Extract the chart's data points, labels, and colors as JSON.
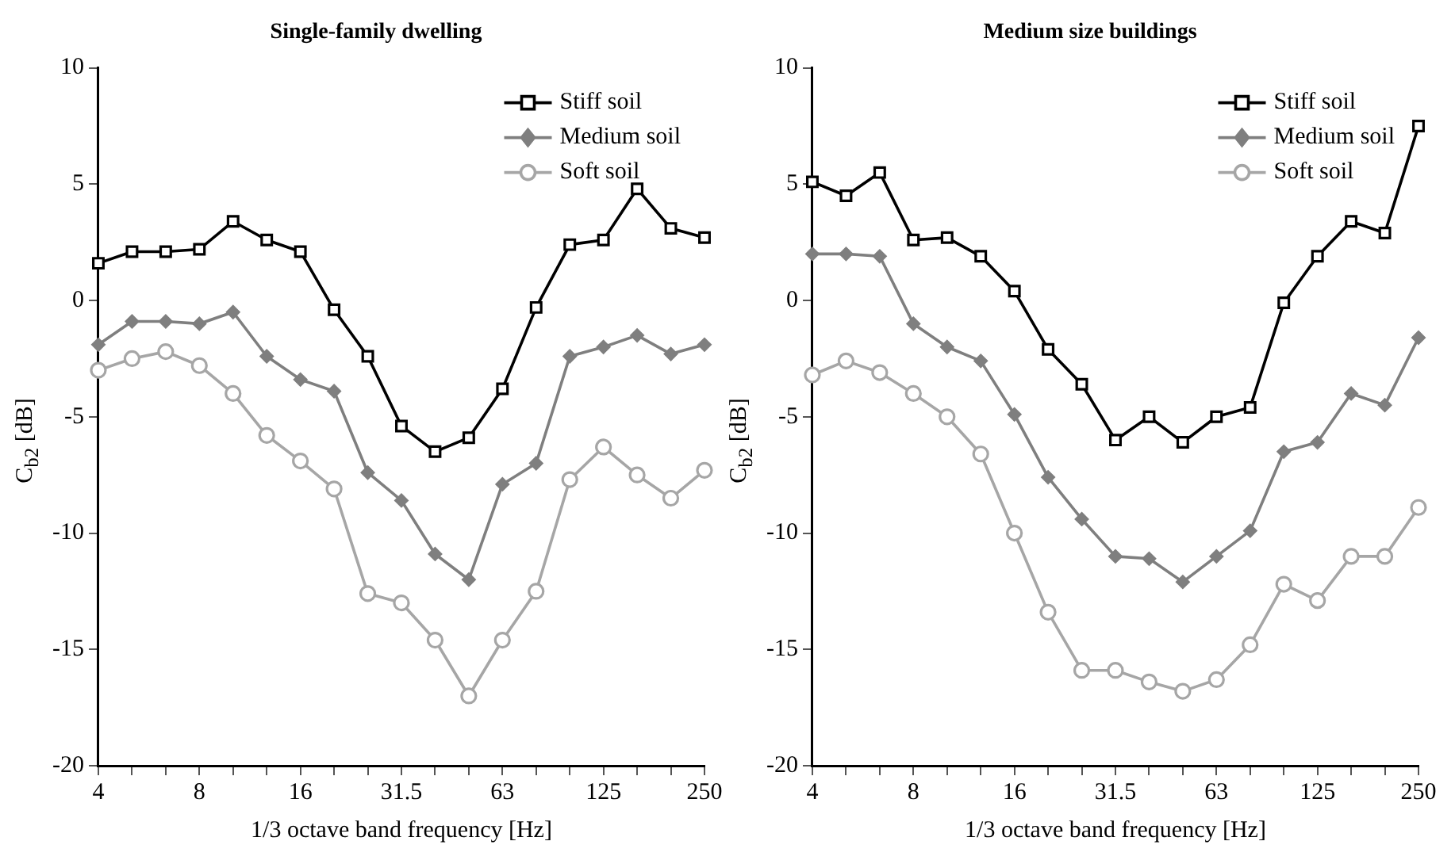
{
  "chart_data": [
    {
      "type": "line",
      "title": "Single-family dwelling",
      "xlabel": "1/3 octave band frequency [Hz]",
      "ylabel": "C$_{b2}$ [dB]",
      "categories": [
        "4",
        null,
        null,
        "8",
        null,
        null,
        "16",
        null,
        null,
        "31.5",
        null,
        null,
        "63",
        null,
        null,
        "125",
        null,
        null,
        "250"
      ],
      "ylim": [
        -20,
        10
      ],
      "yticks": [
        -20,
        -15,
        -10,
        -5,
        0,
        5,
        10
      ],
      "grid": false,
      "legend": "top right",
      "line_style": "solid",
      "series": [
        {
          "name": "Stiff soil",
          "color": "#000000",
          "marker": "square",
          "values": [
            1.6,
            2.1,
            2.1,
            2.2,
            3.4,
            2.6,
            2.1,
            -0.4,
            -2.4,
            -5.4,
            -6.5,
            -5.9,
            -3.8,
            -0.3,
            2.4,
            2.6,
            4.8,
            3.1,
            2.7
          ]
        },
        {
          "name": "Medium soil",
          "color": "#7f7f7f",
          "marker": "diamond",
          "values": [
            -1.9,
            -0.9,
            -0.9,
            -1.0,
            -0.5,
            -2.4,
            -3.4,
            -3.9,
            -7.4,
            -8.6,
            -10.9,
            -12.0,
            -7.9,
            -7.0,
            -2.4,
            -2.0,
            -1.5,
            -2.3,
            -1.9
          ]
        },
        {
          "name": "Soft soil",
          "color": "#a6a6a6",
          "marker": "circle",
          "values": [
            -3.0,
            -2.5,
            -2.2,
            -2.8,
            -4.0,
            -5.8,
            -6.9,
            -8.1,
            -12.6,
            -13.0,
            -14.6,
            -17.0,
            -14.6,
            -12.5,
            -7.7,
            -6.3,
            -7.5,
            -8.5,
            -7.3
          ]
        }
      ]
    },
    {
      "type": "line",
      "title": "Medium size buildings",
      "xlabel": "1/3 octave band frequency [Hz]",
      "ylabel": "C$_{b2}$ [dB]",
      "categories": [
        "4",
        null,
        null,
        "8",
        null,
        null,
        "16",
        null,
        null,
        "31.5",
        null,
        null,
        "63",
        null,
        null,
        "125",
        null,
        null,
        "250"
      ],
      "ylim": [
        -20,
        10
      ],
      "yticks": [
        -20,
        -15,
        -10,
        -5,
        0,
        5,
        10
      ],
      "grid": false,
      "legend": "top right",
      "line_style": "solid",
      "series": [
        {
          "name": "Stiff soil",
          "color": "#000000",
          "marker": "square",
          "values": [
            5.1,
            4.5,
            5.5,
            2.6,
            2.7,
            1.9,
            0.4,
            -2.1,
            -3.6,
            -6.0,
            -5.0,
            -6.1,
            -5.0,
            -4.6,
            -0.1,
            1.9,
            3.4,
            2.9,
            7.5
          ]
        },
        {
          "name": "Medium soil",
          "color": "#7f7f7f",
          "marker": "diamond",
          "values": [
            2.0,
            2.0,
            1.9,
            -1.0,
            -2.0,
            -2.6,
            -4.9,
            -7.6,
            -9.4,
            -11.0,
            -11.1,
            -12.1,
            -11.0,
            -9.9,
            -6.5,
            -6.1,
            -4.0,
            -4.5,
            -1.6
          ]
        },
        {
          "name": "Soft soil",
          "color": "#a6a6a6",
          "marker": "circle",
          "values": [
            -3.2,
            -2.6,
            -3.1,
            -4.0,
            -5.0,
            -6.6,
            -10.0,
            -13.4,
            -15.9,
            -15.9,
            -16.4,
            -16.8,
            -16.3,
            -14.8,
            -12.2,
            -12.9,
            -11.0,
            -11.0,
            -8.9
          ]
        }
      ]
    }
  ]
}
